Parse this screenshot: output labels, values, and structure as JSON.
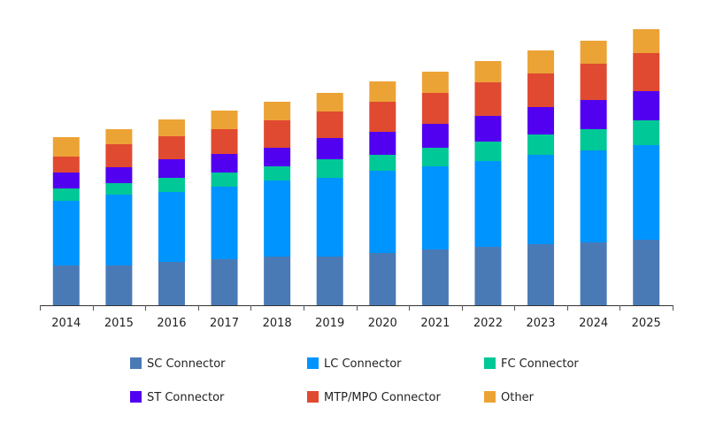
{
  "chart_data": {
    "type": "bar",
    "stacked": true,
    "title": "",
    "xlabel": "",
    "ylabel": "",
    "ylim": [
      0,
      312
    ],
    "grid": false,
    "legend_placement": "bottom",
    "categories": [
      "2014",
      "2015",
      "2016",
      "2017",
      "2018",
      "2019",
      "2020",
      "2021",
      "2022",
      "2023",
      "2024",
      "2025"
    ],
    "series": [
      {
        "name": "SC Connector",
        "color": "#4a7ab5",
        "values": [
          45,
          45,
          49,
          52,
          55,
          55,
          59,
          63,
          66,
          69,
          71,
          74
        ]
      },
      {
        "name": "LC Connector",
        "color": "#0094ff",
        "values": [
          73,
          80,
          79,
          82,
          86,
          89,
          93,
          94,
          97,
          101,
          104,
          107
        ]
      },
      {
        "name": "FC Connector",
        "color": "#00c896",
        "values": [
          14,
          13,
          16,
          16,
          16,
          21,
          18,
          21,
          22,
          23,
          24,
          28
        ]
      },
      {
        "name": "ST Connector",
        "color": "#5200f0",
        "values": [
          18,
          18,
          21,
          21,
          21,
          24,
          26,
          27,
          29,
          31,
          33,
          33
        ]
      },
      {
        "name": "MTP/MPO Connector",
        "color": "#e04a31",
        "values": [
          18,
          26,
          26,
          28,
          31,
          30,
          34,
          35,
          38,
          38,
          41,
          43
        ]
      },
      {
        "name": "Other",
        "color": "#eca335",
        "values": [
          22,
          17,
          19,
          21,
          21,
          21,
          23,
          24,
          24,
          26,
          26,
          27
        ]
      }
    ]
  }
}
